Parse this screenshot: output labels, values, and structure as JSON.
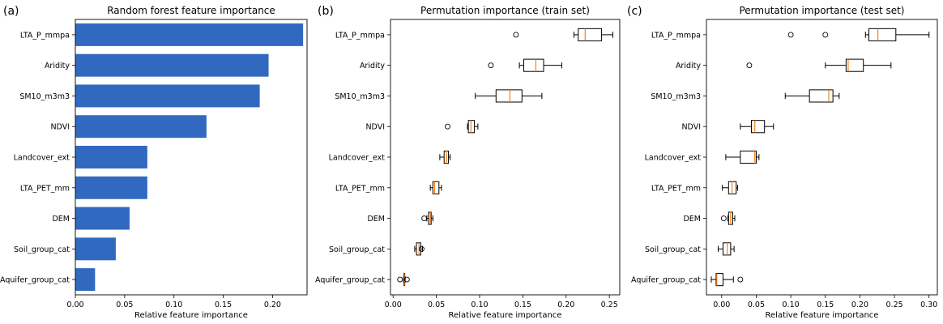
{
  "chart_data": [
    {
      "type": "bar",
      "orientation": "horizontal",
      "panel_label": "(a)",
      "title": "Random forest feature importance",
      "xlabel": "Relative feature importance",
      "categories": [
        "LTA_P_mmpa",
        "Aridity",
        "SM10_m3m3",
        "NDVI",
        "Landcover_ext",
        "LTA_PET_mm",
        "DEM",
        "Soil_group_cat",
        "Aquifer_group_cat"
      ],
      "values": [
        0.231,
        0.196,
        0.187,
        0.133,
        0.073,
        0.073,
        0.055,
        0.041,
        0.02
      ],
      "xlim": [
        0,
        0.235
      ],
      "xticks": [
        "0.00",
        "0.05",
        "0.10",
        "0.15",
        "0.20"
      ],
      "bar_color": "#3069bf"
    },
    {
      "type": "box",
      "orientation": "horizontal",
      "panel_label": "(b)",
      "title": "Permutation importance (train set)",
      "xlabel": "Relative feature importance",
      "categories": [
        "LTA_P_mmpa",
        "Aridity",
        "SM10_m3m3",
        "NDVI",
        "Landcover_ext",
        "LTA_PET_mm",
        "DEM",
        "Soil_group_cat",
        "Aquifer_group_cat"
      ],
      "boxes": [
        {
          "whislo": 0.209,
          "q1": 0.214,
          "med": 0.222,
          "q3": 0.241,
          "whishi": 0.254,
          "fliers": [
            0.142
          ]
        },
        {
          "whislo": 0.146,
          "q1": 0.151,
          "med": 0.165,
          "q3": 0.174,
          "whishi": 0.195,
          "fliers": [
            0.113
          ]
        },
        {
          "whislo": 0.095,
          "q1": 0.119,
          "med": 0.135,
          "q3": 0.149,
          "whishi": 0.172,
          "fliers": []
        },
        {
          "whislo": 0.086,
          "q1": 0.087,
          "med": 0.09,
          "q3": 0.094,
          "whishi": 0.098,
          "fliers": [
            0.063
          ]
        },
        {
          "whislo": 0.054,
          "q1": 0.059,
          "med": 0.062,
          "q3": 0.064,
          "whishi": 0.066,
          "fliers": []
        },
        {
          "whislo": 0.043,
          "q1": 0.046,
          "med": 0.048,
          "q3": 0.053,
          "whishi": 0.056,
          "fliers": []
        },
        {
          "whislo": 0.039,
          "q1": 0.041,
          "med": 0.043,
          "q3": 0.044,
          "whishi": 0.046,
          "fliers": [
            0.036
          ]
        },
        {
          "whislo": 0.025,
          "q1": 0.027,
          "med": 0.03,
          "q3": 0.032,
          "whishi": 0.034,
          "fliers": [
            0.033
          ]
        },
        {
          "whislo": 0.012,
          "q1": 0.0125,
          "med": 0.013,
          "q3": 0.0135,
          "whishi": 0.014,
          "fliers": [
            0.008,
            0.016
          ]
        }
      ],
      "xlim": [
        -0.003,
        0.262
      ],
      "xticks": [
        "0.00",
        "0.05",
        "0.10",
        "0.15",
        "0.20",
        "0.25"
      ],
      "median_color": "#ff7f0e"
    },
    {
      "type": "box",
      "orientation": "horizontal",
      "panel_label": "(c)",
      "title": "Permutation importance (test set)",
      "xlabel": "Relative feature importance",
      "categories": [
        "LTA_P_mmpa",
        "Aridity",
        "SM10_m3m3",
        "NDVI",
        "Landcover_ext",
        "LTA_PET_mm",
        "DEM",
        "Soil_group_cat",
        "Aquifer_group_cat"
      ],
      "boxes": [
        {
          "whislo": 0.208,
          "q1": 0.213,
          "med": 0.226,
          "q3": 0.252,
          "whishi": 0.3,
          "fliers": [
            0.1,
            0.15
          ]
        },
        {
          "whislo": 0.15,
          "q1": 0.18,
          "med": 0.183,
          "q3": 0.205,
          "whishi": 0.245,
          "fliers": [
            0.04
          ]
        },
        {
          "whislo": 0.092,
          "q1": 0.127,
          "med": 0.155,
          "q3": 0.161,
          "whishi": 0.17,
          "fliers": []
        },
        {
          "whislo": 0.027,
          "q1": 0.043,
          "med": 0.048,
          "q3": 0.062,
          "whishi": 0.075,
          "fliers": []
        },
        {
          "whislo": 0.006,
          "q1": 0.027,
          "med": 0.048,
          "q3": 0.05,
          "whishi": 0.054,
          "fliers": []
        },
        {
          "whislo": 0.001,
          "q1": 0.01,
          "med": 0.015,
          "q3": 0.021,
          "whishi": 0.023,
          "fliers": []
        },
        {
          "whislo": 0.009,
          "q1": 0.01,
          "med": 0.013,
          "q3": 0.016,
          "whishi": 0.019,
          "fliers": [
            0.003
          ]
        },
        {
          "whislo": -0.005,
          "q1": 0.002,
          "med": 0.008,
          "q3": 0.013,
          "whishi": 0.018,
          "fliers": []
        },
        {
          "whislo": -0.015,
          "q1": -0.008,
          "med": -0.007,
          "q3": 0.002,
          "whishi": 0.017,
          "fliers": [
            0.027
          ]
        }
      ],
      "xlim": [
        -0.022,
        0.312
      ],
      "xticks": [
        "0.00",
        "0.05",
        "0.10",
        "0.15",
        "0.20",
        "0.25",
        "0.30"
      ],
      "median_color": "#ff7f0e"
    }
  ]
}
